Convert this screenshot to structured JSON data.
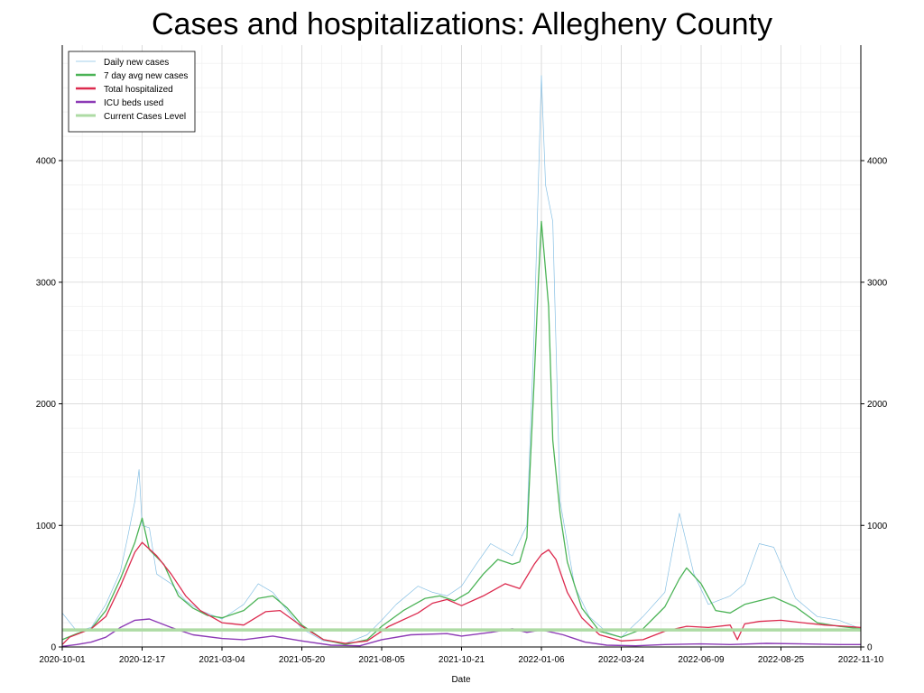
{
  "chart_data": {
    "type": "line",
    "title": "Cases and hospitalizations: Allegheny County",
    "xlabel": "Date",
    "ylabel": "",
    "ylim": [
      0,
      4950
    ],
    "x_ticks": [
      "2020-10-01",
      "2020-12-17",
      "2021-03-04",
      "2021-05-20",
      "2021-08-05",
      "2021-10-21",
      "2022-01-06",
      "2022-03-24",
      "2022-06-09",
      "2022-08-25",
      "2022-11-10"
    ],
    "y_ticks": [
      0,
      1000,
      2000,
      3000,
      4000
    ],
    "right_axis_mirrors_left": true,
    "grid": true,
    "legend_position": "top-left",
    "series": [
      {
        "name": "Daily new cases",
        "color": "#87c0e4",
        "points": [
          [
            "2020-10-01",
            280
          ],
          [
            "2020-10-15",
            130
          ],
          [
            "2020-10-29",
            160
          ],
          [
            "2020-11-12",
            350
          ],
          [
            "2020-11-26",
            620
          ],
          [
            "2020-12-03",
            900
          ],
          [
            "2020-12-10",
            1200
          ],
          [
            "2020-12-14",
            1460
          ],
          [
            "2020-12-17",
            1000
          ],
          [
            "2020-12-24",
            980
          ],
          [
            "2020-12-31",
            600
          ],
          [
            "2021-01-14",
            520
          ],
          [
            "2021-01-28",
            380
          ],
          [
            "2021-02-11",
            300
          ],
          [
            "2021-03-04",
            230
          ],
          [
            "2021-03-25",
            350
          ],
          [
            "2021-04-08",
            520
          ],
          [
            "2021-04-22",
            450
          ],
          [
            "2021-05-06",
            300
          ],
          [
            "2021-05-20",
            150
          ],
          [
            "2021-06-10",
            50
          ],
          [
            "2021-07-01",
            30
          ],
          [
            "2021-07-22",
            100
          ],
          [
            "2021-08-05",
            220
          ],
          [
            "2021-08-19",
            350
          ],
          [
            "2021-09-09",
            500
          ],
          [
            "2021-09-23",
            450
          ],
          [
            "2021-10-07",
            420
          ],
          [
            "2021-10-21",
            500
          ],
          [
            "2021-11-04",
            680
          ],
          [
            "2021-11-18",
            850
          ],
          [
            "2021-12-09",
            750
          ],
          [
            "2021-12-23",
            1000
          ],
          [
            "2021-12-30",
            2600
          ],
          [
            "2022-01-06",
            4700
          ],
          [
            "2022-01-10",
            3800
          ],
          [
            "2022-01-17",
            3500
          ],
          [
            "2022-01-24",
            1200
          ],
          [
            "2022-02-07",
            500
          ],
          [
            "2022-02-21",
            250
          ],
          [
            "2022-03-10",
            120
          ],
          [
            "2022-03-24",
            80
          ],
          [
            "2022-04-14",
            250
          ],
          [
            "2022-05-05",
            450
          ],
          [
            "2022-05-19",
            1100
          ],
          [
            "2022-06-02",
            600
          ],
          [
            "2022-06-16",
            350
          ],
          [
            "2022-07-07",
            420
          ],
          [
            "2022-07-21",
            520
          ],
          [
            "2022-08-04",
            850
          ],
          [
            "2022-08-18",
            820
          ],
          [
            "2022-09-08",
            400
          ],
          [
            "2022-09-29",
            250
          ],
          [
            "2022-10-20",
            220
          ],
          [
            "2022-11-10",
            150
          ]
        ]
      },
      {
        "name": "7 day avg new cases",
        "color": "#4bb356",
        "points": [
          [
            "2020-10-01",
            60
          ],
          [
            "2020-10-15",
            110
          ],
          [
            "2020-10-29",
            150
          ],
          [
            "2020-11-12",
            300
          ],
          [
            "2020-11-26",
            560
          ],
          [
            "2020-12-10",
            860
          ],
          [
            "2020-12-17",
            1060
          ],
          [
            "2020-12-24",
            800
          ],
          [
            "2021-01-07",
            680
          ],
          [
            "2021-01-21",
            420
          ],
          [
            "2021-02-04",
            320
          ],
          [
            "2021-02-18",
            260
          ],
          [
            "2021-03-04",
            240
          ],
          [
            "2021-03-25",
            300
          ],
          [
            "2021-04-08",
            400
          ],
          [
            "2021-04-22",
            420
          ],
          [
            "2021-05-06",
            320
          ],
          [
            "2021-05-20",
            180
          ],
          [
            "2021-06-10",
            60
          ],
          [
            "2021-07-01",
            20
          ],
          [
            "2021-07-22",
            60
          ],
          [
            "2021-08-05",
            170
          ],
          [
            "2021-08-26",
            300
          ],
          [
            "2021-09-16",
            400
          ],
          [
            "2021-09-30",
            420
          ],
          [
            "2021-10-14",
            380
          ],
          [
            "2021-10-28",
            450
          ],
          [
            "2021-11-11",
            600
          ],
          [
            "2021-11-25",
            720
          ],
          [
            "2021-12-09",
            680
          ],
          [
            "2021-12-16",
            700
          ],
          [
            "2021-12-23",
            900
          ],
          [
            "2021-12-30",
            2200
          ],
          [
            "2022-01-03",
            3000
          ],
          [
            "2022-01-06",
            3500
          ],
          [
            "2022-01-13",
            2800
          ],
          [
            "2022-01-17",
            1700
          ],
          [
            "2022-01-24",
            1100
          ],
          [
            "2022-01-31",
            700
          ],
          [
            "2022-02-14",
            320
          ],
          [
            "2022-03-03",
            130
          ],
          [
            "2022-03-24",
            80
          ],
          [
            "2022-04-14",
            150
          ],
          [
            "2022-05-05",
            330
          ],
          [
            "2022-05-19",
            560
          ],
          [
            "2022-05-26",
            650
          ],
          [
            "2022-06-09",
            520
          ],
          [
            "2022-06-23",
            300
          ],
          [
            "2022-07-07",
            280
          ],
          [
            "2022-07-21",
            350
          ],
          [
            "2022-08-04",
            380
          ],
          [
            "2022-08-18",
            410
          ],
          [
            "2022-09-08",
            330
          ],
          [
            "2022-09-29",
            200
          ],
          [
            "2022-10-20",
            170
          ],
          [
            "2022-11-10",
            150
          ]
        ]
      },
      {
        "name": "Total hospitalized",
        "color": "#dc2a4e",
        "points": [
          [
            "2020-10-01",
            20
          ],
          [
            "2020-10-08",
            80
          ],
          [
            "2020-10-29",
            150
          ],
          [
            "2020-11-12",
            250
          ],
          [
            "2020-11-26",
            500
          ],
          [
            "2020-12-10",
            780
          ],
          [
            "2020-12-17",
            860
          ],
          [
            "2020-12-31",
            750
          ],
          [
            "2021-01-14",
            600
          ],
          [
            "2021-01-28",
            420
          ],
          [
            "2021-02-11",
            300
          ],
          [
            "2021-03-04",
            200
          ],
          [
            "2021-03-25",
            180
          ],
          [
            "2021-04-15",
            290
          ],
          [
            "2021-04-29",
            300
          ],
          [
            "2021-05-20",
            170
          ],
          [
            "2021-06-10",
            60
          ],
          [
            "2021-07-01",
            30
          ],
          [
            "2021-07-22",
            50
          ],
          [
            "2021-08-12",
            170
          ],
          [
            "2021-09-09",
            280
          ],
          [
            "2021-09-23",
            360
          ],
          [
            "2021-10-07",
            390
          ],
          [
            "2021-10-21",
            340
          ],
          [
            "2021-11-11",
            420
          ],
          [
            "2021-12-02",
            520
          ],
          [
            "2021-12-16",
            480
          ],
          [
            "2021-12-30",
            680
          ],
          [
            "2022-01-06",
            760
          ],
          [
            "2022-01-13",
            800
          ],
          [
            "2022-01-20",
            720
          ],
          [
            "2022-01-31",
            450
          ],
          [
            "2022-02-14",
            240
          ],
          [
            "2022-03-03",
            100
          ],
          [
            "2022-03-24",
            50
          ],
          [
            "2022-04-14",
            60
          ],
          [
            "2022-05-05",
            130
          ],
          [
            "2022-05-26",
            170
          ],
          [
            "2022-06-16",
            160
          ],
          [
            "2022-07-07",
            180
          ],
          [
            "2022-07-14",
            60
          ],
          [
            "2022-07-21",
            190
          ],
          [
            "2022-08-04",
            210
          ],
          [
            "2022-08-25",
            220
          ],
          [
            "2022-09-15",
            200
          ],
          [
            "2022-10-06",
            180
          ],
          [
            "2022-10-27",
            170
          ],
          [
            "2022-11-10",
            160
          ]
        ]
      },
      {
        "name": "ICU beds used",
        "color": "#8d3bb6",
        "points": [
          [
            "2020-10-01",
            5
          ],
          [
            "2020-10-15",
            20
          ],
          [
            "2020-10-29",
            40
          ],
          [
            "2020-11-12",
            80
          ],
          [
            "2020-11-26",
            160
          ],
          [
            "2020-12-10",
            220
          ],
          [
            "2020-12-24",
            230
          ],
          [
            "2021-01-14",
            160
          ],
          [
            "2021-02-04",
            100
          ],
          [
            "2021-03-04",
            70
          ],
          [
            "2021-03-25",
            60
          ],
          [
            "2021-04-22",
            90
          ],
          [
            "2021-05-20",
            50
          ],
          [
            "2021-06-17",
            15
          ],
          [
            "2021-07-15",
            10
          ],
          [
            "2021-08-05",
            60
          ],
          [
            "2021-09-02",
            100
          ],
          [
            "2021-10-07",
            110
          ],
          [
            "2021-10-21",
            90
          ],
          [
            "2021-11-18",
            120
          ],
          [
            "2021-12-09",
            150
          ],
          [
            "2021-12-23",
            120
          ],
          [
            "2022-01-06",
            140
          ],
          [
            "2022-01-27",
            100
          ],
          [
            "2022-02-17",
            40
          ],
          [
            "2022-03-10",
            15
          ],
          [
            "2022-04-07",
            10
          ],
          [
            "2022-05-05",
            20
          ],
          [
            "2022-06-09",
            25
          ],
          [
            "2022-07-07",
            20
          ],
          [
            "2022-08-11",
            30
          ],
          [
            "2022-09-15",
            25
          ],
          [
            "2022-10-20",
            20
          ],
          [
            "2022-11-10",
            20
          ]
        ]
      },
      {
        "name": "Current Cases Level",
        "color": "#aedba4",
        "points": [
          [
            "2020-10-01",
            140
          ],
          [
            "2022-11-10",
            140
          ]
        ]
      }
    ]
  }
}
